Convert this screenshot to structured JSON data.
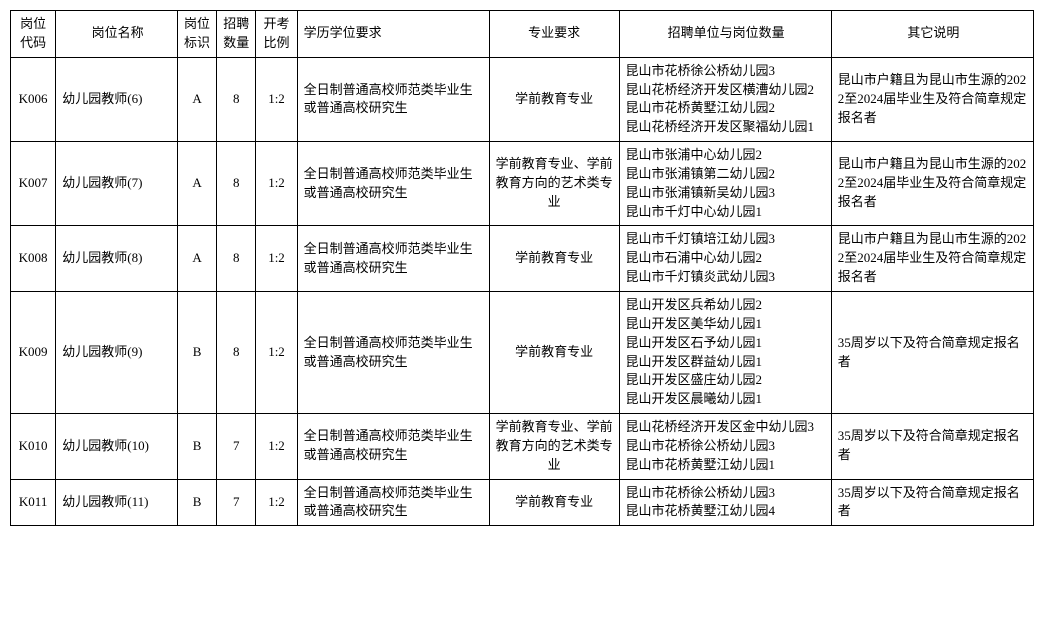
{
  "columns": [
    "岗位代码",
    "岗位名称",
    "岗位标识",
    "招聘数量",
    "开考比例",
    "学历学位要求",
    "专业要求",
    "招聘单位与岗位数量",
    "其它说明"
  ],
  "edu_text": "全日制普通高校师范类毕业生或普通高校研究生",
  "major_a": "学前教育专业",
  "major_b": "学前教育专业、学前教育方向的艺术类专业",
  "note_a": "昆山市户籍且为昆山市生源的2022至2024届毕业生及符合简章规定报名者",
  "note_b": "35周岁以下及符合简章规定报名者",
  "rows": [
    {
      "code": "K006",
      "name": "幼儿园教师(6)",
      "flag": "A",
      "count": "8",
      "ratio": "1:2",
      "major_key": "major_a",
      "note_key": "note_a",
      "units": [
        "昆山市花桥徐公桥幼儿园3",
        "昆山花桥经济开发区横漕幼儿园2",
        "昆山市花桥黄墅江幼儿园2",
        "昆山花桥经济开发区聚福幼儿园1"
      ]
    },
    {
      "code": "K007",
      "name": "幼儿园教师(7)",
      "flag": "A",
      "count": "8",
      "ratio": "1:2",
      "major_key": "major_b",
      "note_key": "note_a",
      "units": [
        "昆山市张浦中心幼儿园2",
        "昆山市张浦镇第二幼儿园2",
        "昆山市张浦镇新吴幼儿园3",
        "昆山市千灯中心幼儿园1"
      ]
    },
    {
      "code": "K008",
      "name": "幼儿园教师(8)",
      "flag": "A",
      "count": "8",
      "ratio": "1:2",
      "major_key": "major_a",
      "note_key": "note_a",
      "units": [
        "昆山市千灯镇培江幼儿园3",
        "昆山市石浦中心幼儿园2",
        "昆山市千灯镇炎武幼儿园3"
      ]
    },
    {
      "code": "K009",
      "name": "幼儿园教师(9)",
      "flag": "B",
      "count": "8",
      "ratio": "1:2",
      "major_key": "major_a",
      "note_key": "note_b",
      "units": [
        "昆山开发区兵希幼儿园2",
        "昆山开发区美华幼儿园1",
        "昆山开发区石予幼儿园1",
        "昆山开发区群益幼儿园1",
        "昆山开发区盛庄幼儿园2",
        "昆山开发区晨曦幼儿园1"
      ]
    },
    {
      "code": "K010",
      "name": "幼儿园教师(10)",
      "flag": "B",
      "count": "7",
      "ratio": "1:2",
      "major_key": "major_b",
      "note_key": "note_b",
      "units": [
        "昆山花桥经济开发区金中幼儿园3",
        "昆山市花桥徐公桥幼儿园3",
        "昆山市花桥黄墅江幼儿园1"
      ]
    },
    {
      "code": "K011",
      "name": "幼儿园教师(11)",
      "flag": "B",
      "count": "7",
      "ratio": "1:2",
      "major_key": "major_a",
      "note_key": "note_b",
      "units": [
        "昆山市花桥徐公桥幼儿园3",
        "昆山市花桥黄墅江幼儿园4"
      ]
    }
  ]
}
